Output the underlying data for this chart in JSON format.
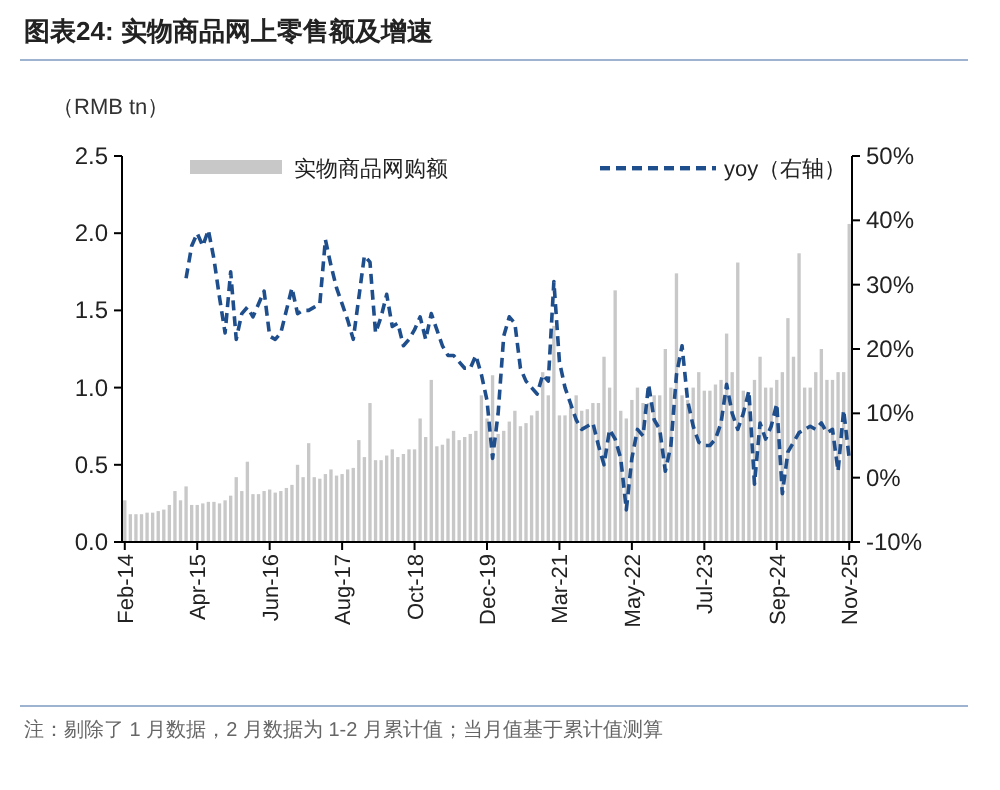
{
  "chart_data": {
    "type": "bar",
    "title": "图表24:  实物商品网上零售额及增速",
    "ylabel": "（RMB tn）",
    "legend": "top",
    "annotations": [
      "注：剔除了 1 月数据，2 月数据为 1-2 月累计值；当月值基于累计值测算"
    ],
    "categories": [
      "Feb-14",
      null,
      null,
      null,
      null,
      null,
      null,
      null,
      null,
      null,
      null,
      null,
      null,
      "Apr-15",
      null,
      null,
      null,
      null,
      null,
      null,
      null,
      null,
      null,
      null,
      null,
      null,
      "Jun-16",
      null,
      null,
      null,
      null,
      null,
      null,
      null,
      null,
      null,
      null,
      null,
      null,
      "Aug-17",
      null,
      null,
      null,
      null,
      null,
      null,
      null,
      null,
      null,
      null,
      null,
      null,
      "Oct-18",
      null,
      null,
      null,
      null,
      null,
      null,
      null,
      null,
      null,
      null,
      null,
      null,
      "Dec-19",
      null,
      null,
      null,
      null,
      null,
      null,
      null,
      null,
      null,
      null,
      null,
      null,
      "Mar-21",
      null,
      null,
      null,
      null,
      null,
      null,
      null,
      null,
      null,
      null,
      null,
      null,
      "May-22",
      null,
      null,
      null,
      null,
      null,
      null,
      null,
      null,
      null,
      null,
      null,
      null,
      "Jul-23",
      null,
      null,
      null,
      null,
      null,
      null,
      null,
      null,
      null,
      null,
      null,
      null,
      "Sep-24",
      null,
      null,
      null,
      null,
      null,
      null,
      null,
      null,
      null,
      null,
      null,
      null,
      "Nov-25"
    ],
    "series": [
      {
        "name": "实物商品网购额",
        "color": "#c8c8c8",
        "values": [
          0.27,
          0.18,
          0.18,
          0.18,
          0.19,
          0.19,
          0.2,
          0.21,
          0.24,
          0.33,
          0.27,
          0.36,
          0.24,
          0.24,
          0.25,
          0.26,
          0.26,
          0.25,
          0.27,
          0.3,
          0.42,
          0.33,
          0.52,
          0.31,
          0.31,
          0.33,
          0.34,
          0.32,
          0.33,
          0.35,
          0.37,
          0.5,
          0.42,
          0.64,
          0.42,
          0.41,
          0.44,
          0.47,
          0.43,
          0.44,
          0.47,
          0.48,
          0.66,
          0.55,
          0.9,
          0.53,
          0.53,
          0.56,
          0.6,
          0.55,
          0.57,
          0.6,
          0.6,
          0.8,
          0.68,
          1.05,
          0.62,
          0.63,
          0.67,
          0.72,
          0.66,
          0.68,
          0.7,
          0.72,
          0.95,
          0.8,
          1.08,
          0.7,
          0.72,
          0.78,
          0.85,
          0.75,
          0.77,
          0.82,
          0.85,
          1.1,
          0.95,
          1.4,
          0.82,
          0.82,
          0.88,
          0.95,
          0.85,
          0.86,
          0.9,
          0.9,
          1.2,
          1.0,
          1.63,
          0.85,
          0.8,
          0.92,
          1.0,
          0.9,
          0.9,
          0.95,
          0.95,
          1.25,
          1.0,
          1.74,
          0.95,
          0.92,
          1.0,
          1.1,
          0.98,
          0.98,
          1.02,
          1.05,
          1.35,
          1.1,
          1.81,
          0.98,
          0.95,
          1.05,
          1.2,
          1.0,
          1.0,
          1.05,
          1.1,
          1.45,
          1.2,
          1.87,
          1.0,
          1.0,
          1.1,
          1.25,
          1.05,
          1.05,
          1.1,
          1.1,
          2.06
        ]
      },
      {
        "name": "yoy（右轴）",
        "type": "line",
        "axis": "y2",
        "color": "#1f4e8c",
        "line_style": "dashed",
        "values": [
          null,
          null,
          null,
          null,
          null,
          null,
          null,
          null,
          null,
          null,
          null,
          31,
          36,
          38,
          36,
          38.5,
          34,
          28,
          22.5,
          32,
          21.5,
          25.5,
          26.5,
          25,
          27,
          29,
          22,
          21.5,
          22.5,
          26,
          29.5,
          25.5,
          26,
          26,
          26.5,
          27,
          37,
          33,
          29.5,
          27,
          24.5,
          21.5,
          28,
          34.5,
          33.5,
          22.5,
          25,
          28.5,
          23.5,
          24,
          20.5,
          21.5,
          23,
          25,
          21.5,
          25.5,
          23,
          20.5,
          19,
          19,
          18,
          17,
          17,
          19,
          16,
          12,
          3,
          10,
          22,
          25,
          24,
          17,
          15,
          14,
          13,
          16,
          15,
          30.5,
          18,
          14,
          11.5,
          9,
          7.5,
          8,
          8.5,
          5,
          2,
          7.5,
          6,
          3,
          -5,
          3,
          7.5,
          6.5,
          14.5,
          9,
          7.5,
          1,
          5,
          16,
          20.5,
          12,
          8,
          5.5,
          5,
          5,
          6,
          8.5,
          14.5,
          10,
          7.5,
          10,
          13.5,
          -1,
          8.5,
          6,
          8,
          11.5,
          -2.5,
          4,
          5.5,
          7,
          7.5,
          8,
          7.5,
          8.5,
          7,
          7.5,
          1,
          10.5,
          3
        ]
      }
    ],
    "ylim": [
      0,
      2.5
    ],
    "yticks": [
      {
        "value": 0,
        "label": "0.0"
      },
      {
        "value": 0.5,
        "label": "0.5"
      },
      {
        "value": 1,
        "label": "1.0"
      },
      {
        "value": 1.5,
        "label": "1.5"
      },
      {
        "value": 2,
        "label": "2.0"
      },
      {
        "value": 2.5,
        "label": "2.5"
      }
    ],
    "y2lim": [
      -10,
      50
    ],
    "y2ticks": [
      {
        "value": -10,
        "label": "-10%"
      },
      {
        "value": 0,
        "label": "0%"
      },
      {
        "value": 10,
        "label": "10%"
      },
      {
        "value": 20,
        "label": "20%"
      },
      {
        "value": 30,
        "label": "30%"
      },
      {
        "value": 40,
        "label": "40%"
      },
      {
        "value": 50,
        "label": "50%"
      }
    ]
  }
}
